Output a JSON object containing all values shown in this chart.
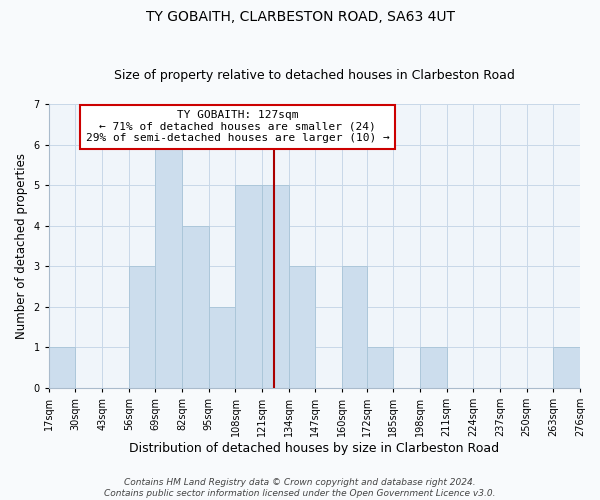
{
  "title": "TY GOBAITH, CLARBESTON ROAD, SA63 4UT",
  "subtitle": "Size of property relative to detached houses in Clarbeston Road",
  "xlabel": "Distribution of detached houses by size in Clarbeston Road",
  "ylabel": "Number of detached properties",
  "bin_edges": [
    17,
    30,
    43,
    56,
    69,
    82,
    95,
    108,
    121,
    134,
    147,
    160,
    172,
    185,
    198,
    211,
    224,
    237,
    250,
    263,
    276
  ],
  "bin_labels": [
    "17sqm",
    "30sqm",
    "43sqm",
    "56sqm",
    "69sqm",
    "82sqm",
    "95sqm",
    "108sqm",
    "121sqm",
    "134sqm",
    "147sqm",
    "160sqm",
    "172sqm",
    "185sqm",
    "198sqm",
    "211sqm",
    "224sqm",
    "237sqm",
    "250sqm",
    "263sqm",
    "276sqm"
  ],
  "counts": [
    1,
    0,
    0,
    3,
    6,
    4,
    2,
    5,
    5,
    3,
    0,
    3,
    1,
    0,
    1,
    0,
    0,
    0,
    0,
    1
  ],
  "bar_color": "#ccdded",
  "bar_edgecolor": "#a8c4d8",
  "grid_color": "#c8d8e8",
  "property_size": 127,
  "vline_color": "#aa0000",
  "annotation_title": "TY GOBAITH: 127sqm",
  "annotation_line1": "← 71% of detached houses are smaller (24)",
  "annotation_line2": "29% of semi-detached houses are larger (10) →",
  "annotation_box_edgecolor": "#cc0000",
  "annotation_box_facecolor": "#ffffff",
  "ylim": [
    0,
    7
  ],
  "yticks": [
    0,
    1,
    2,
    3,
    4,
    5,
    6,
    7
  ],
  "footer_line1": "Contains HM Land Registry data © Crown copyright and database right 2024.",
  "footer_line2": "Contains public sector information licensed under the Open Government Licence v3.0.",
  "background_color": "#f8fafc",
  "plot_background_color": "#f0f5fa",
  "title_fontsize": 10,
  "subtitle_fontsize": 9,
  "tick_label_fontsize": 7,
  "ylabel_fontsize": 8.5,
  "xlabel_fontsize": 9,
  "annotation_fontsize": 8,
  "footer_fontsize": 6.5
}
